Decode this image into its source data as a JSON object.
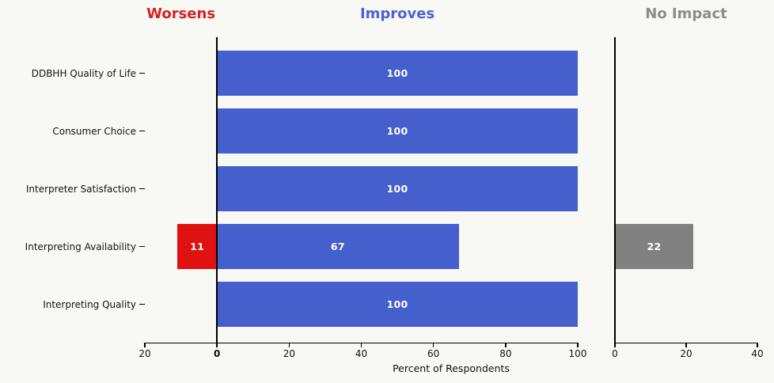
{
  "chart_data": {
    "type": "bar",
    "orientation": "horizontal",
    "title": "",
    "xlabel": "Percent of Respondents",
    "grid": false,
    "categories": [
      "DDBHH Quality of Life",
      "Consumer Choice",
      "Interpreter Satisfaction",
      "Interpreting Availability",
      "Interpreting Quality"
    ],
    "section_headers": [
      {
        "label": "Worsens",
        "color": "#d42222",
        "anchor": "left-negative"
      },
      {
        "label": "Improves",
        "color": "#4c62d6",
        "anchor": "left-positive"
      },
      {
        "label": "No Impact",
        "color": "#8c8c8c",
        "anchor": "right"
      }
    ],
    "series": [
      {
        "name": "Worsens",
        "panel": "left",
        "direction": "negative",
        "color": "#e01111",
        "values": [
          0,
          0,
          0,
          11,
          0
        ]
      },
      {
        "name": "Improves",
        "panel": "left",
        "direction": "positive",
        "color": "#4560cd",
        "values": [
          100,
          100,
          100,
          67,
          100
        ]
      },
      {
        "name": "No Impact",
        "panel": "right",
        "direction": "positive",
        "color": "#808080",
        "values": [
          0,
          0,
          0,
          22,
          0
        ]
      }
    ],
    "axes": {
      "left": {
        "xlim": [
          -20,
          100
        ],
        "ticks": [
          {
            "value": -20,
            "label": "20"
          },
          {
            "value": 0,
            "label": "0",
            "bold": true
          },
          {
            "value": 20,
            "label": "20"
          },
          {
            "value": 40,
            "label": "40"
          },
          {
            "value": 60,
            "label": "60"
          },
          {
            "value": 80,
            "label": "80"
          },
          {
            "value": 100,
            "label": "100"
          }
        ]
      },
      "right": {
        "xlim": [
          0,
          40
        ],
        "ticks": [
          {
            "value": 0,
            "label": "0"
          },
          {
            "value": 20,
            "label": "20"
          },
          {
            "value": 40,
            "label": "40"
          }
        ]
      }
    },
    "bar_value_labels_shown": true,
    "bar_label_color": "#ffffff"
  },
  "colors": {
    "background": "#f8f8f5",
    "axis": "#000000",
    "text": "#141414"
  }
}
